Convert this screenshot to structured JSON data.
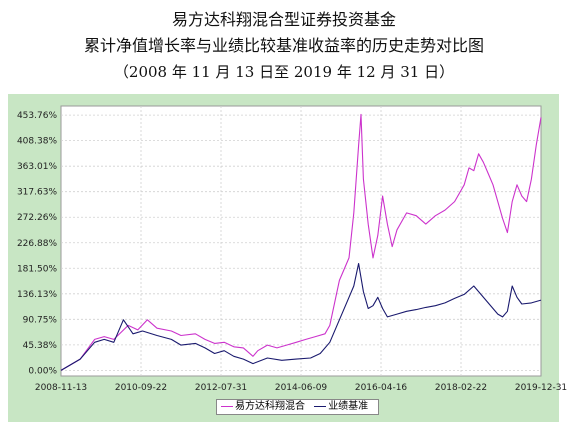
{
  "header": {
    "title": "易方达科翔混合型证券投资基金",
    "subtitle": "累计净值增长率与业绩比较基准收益率的历史走势对比图",
    "period": "（2008 年 11 月 13 日至 2019 年 12 月 31 日）"
  },
  "chart_data": {
    "type": "line",
    "title": "易方达科翔混合型证券投资基金",
    "xlabel": "",
    "ylabel": "",
    "x_tick_labels": [
      "2008-11-13",
      "2010-09-22",
      "2012-07-31",
      "2014-06-09",
      "2016-04-16",
      "2018-02-22",
      "2019-12-31"
    ],
    "y_tick_labels": [
      "0.00%",
      "45.38%",
      "90.75%",
      "136.13%",
      "181.50%",
      "226.88%",
      "272.26%",
      "317.63%",
      "363.01%",
      "408.38%",
      "453.76%"
    ],
    "ylim": [
      -10,
      470
    ],
    "grid": true,
    "legend_position": "bottom",
    "colors": {
      "fund": "#cc33cc",
      "benchmark": "#1a1a6e",
      "background": "#c8e6c4"
    },
    "series": [
      {
        "name": "易方达科翔混合",
        "color": "#cc33cc",
        "points": [
          [
            0.0,
            0
          ],
          [
            0.04,
            20
          ],
          [
            0.07,
            55
          ],
          [
            0.09,
            60
          ],
          [
            0.11,
            55
          ],
          [
            0.14,
            80
          ],
          [
            0.16,
            72
          ],
          [
            0.18,
            90
          ],
          [
            0.2,
            75
          ],
          [
            0.23,
            70
          ],
          [
            0.25,
            62
          ],
          [
            0.28,
            65
          ],
          [
            0.3,
            55
          ],
          [
            0.32,
            48
          ],
          [
            0.34,
            50
          ],
          [
            0.36,
            42
          ],
          [
            0.38,
            40
          ],
          [
            0.4,
            25
          ],
          [
            0.41,
            35
          ],
          [
            0.43,
            45
          ],
          [
            0.45,
            40
          ],
          [
            0.47,
            45
          ],
          [
            0.49,
            50
          ],
          [
            0.51,
            55
          ],
          [
            0.53,
            60
          ],
          [
            0.55,
            65
          ],
          [
            0.56,
            80
          ],
          [
            0.57,
            120
          ],
          [
            0.58,
            160
          ],
          [
            0.59,
            180
          ],
          [
            0.6,
            200
          ],
          [
            0.61,
            280
          ],
          [
            0.62,
            400
          ],
          [
            0.625,
            455
          ],
          [
            0.63,
            340
          ],
          [
            0.64,
            260
          ],
          [
            0.65,
            200
          ],
          [
            0.66,
            240
          ],
          [
            0.67,
            310
          ],
          [
            0.68,
            260
          ],
          [
            0.69,
            220
          ],
          [
            0.7,
            250
          ],
          [
            0.72,
            280
          ],
          [
            0.74,
            275
          ],
          [
            0.76,
            260
          ],
          [
            0.78,
            275
          ],
          [
            0.8,
            285
          ],
          [
            0.82,
            300
          ],
          [
            0.84,
            330
          ],
          [
            0.85,
            360
          ],
          [
            0.86,
            355
          ],
          [
            0.87,
            385
          ],
          [
            0.88,
            370
          ],
          [
            0.89,
            350
          ],
          [
            0.9,
            330
          ],
          [
            0.91,
            300
          ],
          [
            0.92,
            270
          ],
          [
            0.93,
            245
          ],
          [
            0.94,
            300
          ],
          [
            0.95,
            330
          ],
          [
            0.96,
            310
          ],
          [
            0.97,
            300
          ],
          [
            0.98,
            340
          ],
          [
            0.99,
            400
          ],
          [
            1.0,
            450
          ]
        ]
      },
      {
        "name": "业绩基准",
        "color": "#1a1a6e",
        "points": [
          [
            0.0,
            0
          ],
          [
            0.04,
            20
          ],
          [
            0.07,
            50
          ],
          [
            0.09,
            55
          ],
          [
            0.11,
            50
          ],
          [
            0.13,
            90
          ],
          [
            0.15,
            65
          ],
          [
            0.17,
            70
          ],
          [
            0.2,
            62
          ],
          [
            0.23,
            55
          ],
          [
            0.25,
            45
          ],
          [
            0.28,
            48
          ],
          [
            0.3,
            40
          ],
          [
            0.32,
            30
          ],
          [
            0.34,
            35
          ],
          [
            0.36,
            25
          ],
          [
            0.38,
            20
          ],
          [
            0.4,
            12
          ],
          [
            0.43,
            22
          ],
          [
            0.46,
            18
          ],
          [
            0.49,
            20
          ],
          [
            0.52,
            22
          ],
          [
            0.54,
            30
          ],
          [
            0.56,
            50
          ],
          [
            0.58,
            90
          ],
          [
            0.6,
            130
          ],
          [
            0.61,
            150
          ],
          [
            0.62,
            190
          ],
          [
            0.63,
            140
          ],
          [
            0.64,
            110
          ],
          [
            0.65,
            115
          ],
          [
            0.66,
            130
          ],
          [
            0.67,
            110
          ],
          [
            0.68,
            95
          ],
          [
            0.7,
            100
          ],
          [
            0.72,
            105
          ],
          [
            0.74,
            108
          ],
          [
            0.76,
            112
          ],
          [
            0.78,
            115
          ],
          [
            0.8,
            120
          ],
          [
            0.82,
            128
          ],
          [
            0.84,
            135
          ],
          [
            0.86,
            150
          ],
          [
            0.87,
            140
          ],
          [
            0.89,
            120
          ],
          [
            0.91,
            100
          ],
          [
            0.92,
            95
          ],
          [
            0.93,
            105
          ],
          [
            0.94,
            150
          ],
          [
            0.95,
            130
          ],
          [
            0.96,
            118
          ],
          [
            0.98,
            120
          ],
          [
            1.0,
            125
          ]
        ]
      }
    ]
  }
}
